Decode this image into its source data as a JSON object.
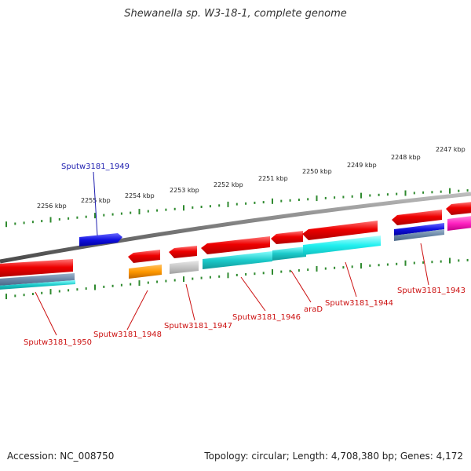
{
  "title": "Shewanella sp. W3-18-1, complete genome",
  "footer": {
    "accession": "Accession: NC_008750",
    "stats": "Topology: circular; Length: 4,708,380 bp; Genes: 4,172"
  },
  "colors": {
    "backbone": "#8a8a8a",
    "kbp_ticks": "#2f8a2f",
    "gene_label_red": "#cc1111",
    "gene_label_blue": "#1f1fb0"
  },
  "kbp_labels": [
    "2256 kbp",
    "2255 kbp",
    "2254 kbp",
    "2253 kbp",
    "2252 kbp",
    "2251 kbp",
    "2250 kbp",
    "2249 kbp",
    "2248 kbp",
    "2247 kbp"
  ],
  "gene_labels": [
    {
      "name": "Sputw3181_1949",
      "color": "#1f1fb0"
    },
    {
      "name": "Sputw3181_1950",
      "color": "#cc1111"
    },
    {
      "name": "Sputw3181_1948",
      "color": "#cc1111"
    },
    {
      "name": "Sputw3181_1947",
      "color": "#cc1111"
    },
    {
      "name": "Sputw3181_1946",
      "color": "#cc1111"
    },
    {
      "name": "araD",
      "color": "#cc1111"
    },
    {
      "name": "Sputw3181_1944",
      "color": "#cc1111"
    },
    {
      "name": "Sputw3181_1943",
      "color": "#cc1111"
    }
  ]
}
